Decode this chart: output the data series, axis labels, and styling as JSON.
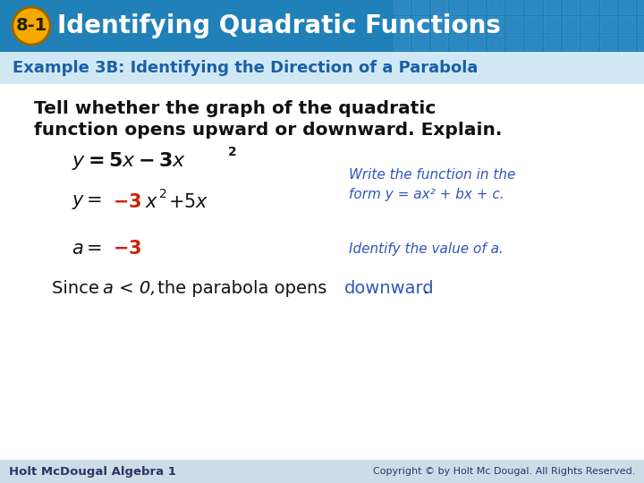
{
  "header_bg_top": "#1a6aa0",
  "header_bg_bottom": "#2e8ec8",
  "header_text": "Identifying Quadratic Functions",
  "header_badge": "8-1",
  "header_badge_bg": "#f5a800",
  "header_text_color": "#ffffff",
  "example_label": "Example 3B: Identifying the Direction of a Parabola",
  "example_label_color": "#1a5fa8",
  "body_bg": "#ffffff",
  "footer_left": "Holt McDougal Algebra 1",
  "footer_right": "Copyright © by Holt Mc Dougal. All Rights Reserved.",
  "footer_color": "#333366",
  "footer_bg": "#ccdde8",
  "black": "#111111",
  "red": "#cc2200",
  "blue": "#3355bb"
}
